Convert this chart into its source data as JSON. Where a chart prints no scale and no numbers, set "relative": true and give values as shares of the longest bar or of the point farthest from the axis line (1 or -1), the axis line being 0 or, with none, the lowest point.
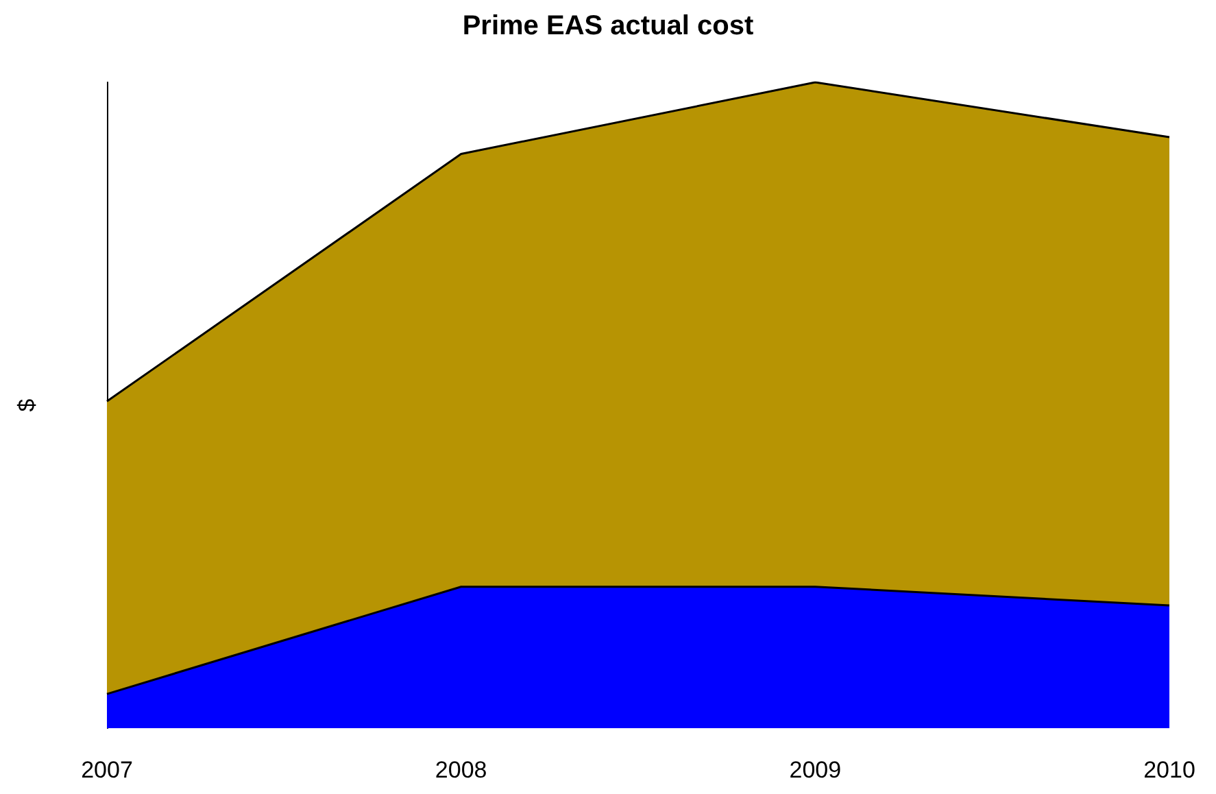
{
  "chart_data": {
    "type": "area",
    "title": "Prime EAS actual cost",
    "ylabel": "$",
    "categories": [
      "2007",
      "2008",
      "2009",
      "2010"
    ],
    "stacked": true,
    "relative": true,
    "grid": false,
    "marker": "none",
    "series": [
      {
        "color": "#0000ff",
        "values": [
          0.053,
          0.219,
          0.219,
          0.19
        ]
      },
      {
        "color": "#b79403",
        "values": [
          0.453,
          0.67,
          0.781,
          0.725
        ]
      }
    ]
  }
}
